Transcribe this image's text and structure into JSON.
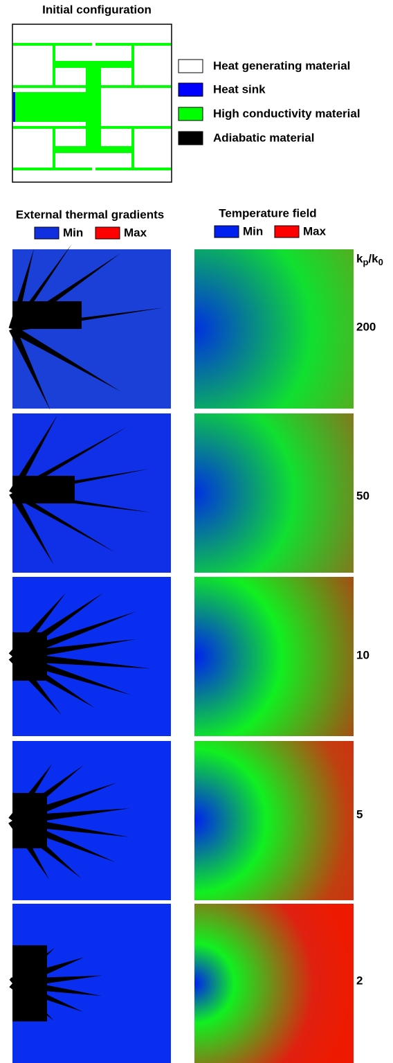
{
  "initial": {
    "title": "Initial configuration",
    "legend": [
      "Heat generating material",
      "Heat sink",
      "High conductivity material",
      "Adiabatic material"
    ]
  },
  "gradients": {
    "title": "External thermal gradients",
    "min": "Min",
    "max": "Max"
  },
  "temperature": {
    "title": "Temperature field",
    "min": "Min",
    "max": "Max"
  },
  "ratio": {
    "k1": "k",
    "sub1": "p",
    "sep": "/",
    "k2": "k",
    "sub2": "0"
  },
  "rows": [
    200,
    50,
    10,
    5,
    2
  ]
}
